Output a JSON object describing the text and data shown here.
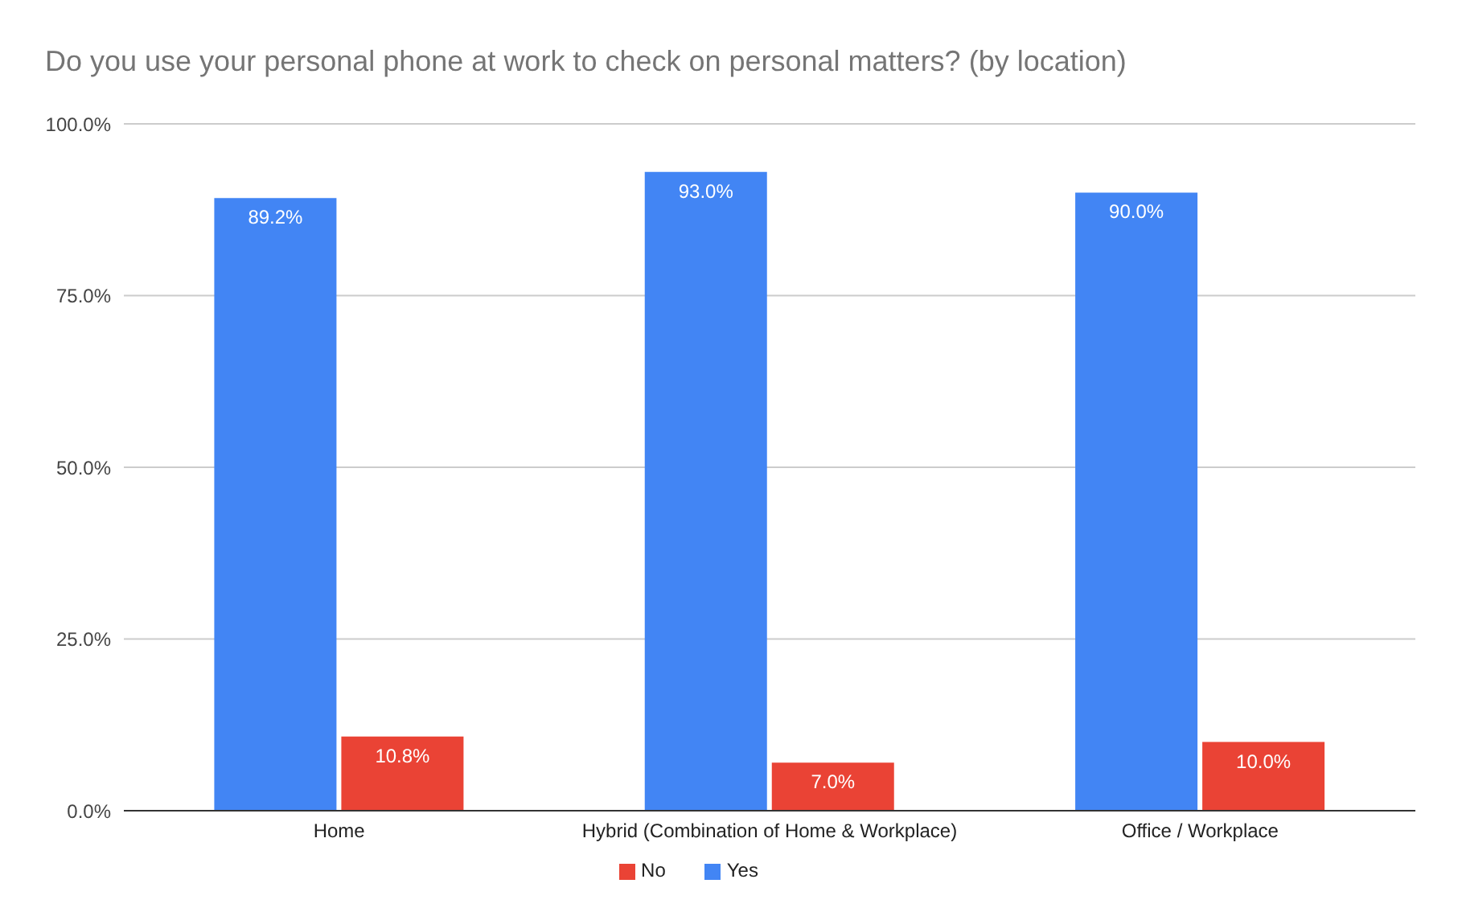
{
  "chart_data": {
    "type": "bar",
    "title": "Do you use your personal phone at work to check on personal matters? (by location)",
    "categories": [
      "Home",
      "Hybrid (Combination of Home & Workplace)",
      "Office / Workplace"
    ],
    "series": [
      {
        "name": "Yes",
        "color": "#4285f4",
        "values": [
          89.2,
          93.0,
          90.0
        ],
        "value_labels": [
          "89.2%",
          "93.0%",
          "90.0%"
        ]
      },
      {
        "name": "No",
        "color": "#ea4335",
        "values": [
          10.8,
          7.0,
          10.0
        ],
        "value_labels": [
          "10.8%",
          "7.0%",
          "10.0%"
        ]
      }
    ],
    "ylim": [
      0,
      100
    ],
    "yticks": [
      {
        "value": 0,
        "label": "0.0%"
      },
      {
        "value": 25,
        "label": "25.0%"
      },
      {
        "value": 50,
        "label": "50.0%"
      },
      {
        "value": 75,
        "label": "75.0%"
      },
      {
        "value": 100,
        "label": "100.0%"
      }
    ],
    "grid": "y",
    "legend": "bottom"
  }
}
